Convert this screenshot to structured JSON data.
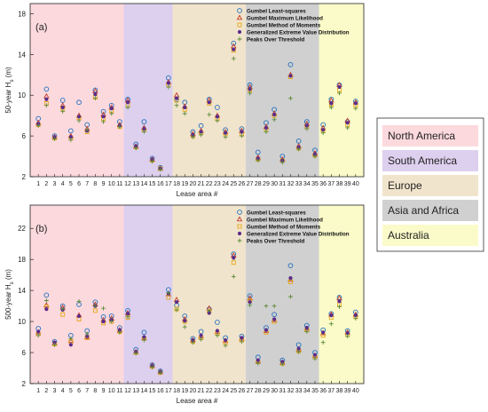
{
  "figure": {
    "region_legend": [
      {
        "name": "North America",
        "color": "#fcd9dd"
      },
      {
        "name": "South America",
        "color": "#ddd0ee"
      },
      {
        "name": "Europe",
        "color": "#f1e4cc"
      },
      {
        "name": "Asia and Africa",
        "color": "#d0d0d0"
      },
      {
        "name": "Australia",
        "color": "#fafbc9"
      }
    ]
  },
  "chart_data": [
    {
      "type": "scatter",
      "panel_label": "(a)",
      "xlabel": "Lease area #",
      "ylabel": "50-year H_s (m)",
      "ylabel_parts": {
        "main": "50-year H",
        "sub": "s",
        "unit": " (m)"
      },
      "ylim": [
        2,
        19
      ],
      "yticks": [
        2,
        6,
        10,
        14,
        18
      ],
      "xlim": [
        0,
        41
      ],
      "xticks": [
        1,
        2,
        3,
        4,
        5,
        6,
        7,
        8,
        9,
        10,
        11,
        12,
        13,
        14,
        15,
        16,
        17,
        18,
        19,
        20,
        21,
        22,
        23,
        24,
        25,
        26,
        27,
        28,
        29,
        30,
        31,
        32,
        33,
        34,
        35,
        36,
        37,
        38,
        39,
        40
      ],
      "region_spans": [
        {
          "region": "North America",
          "from": 0,
          "to": 11.5
        },
        {
          "region": "South America",
          "from": 11.5,
          "to": 17.5
        },
        {
          "region": "Europe",
          "from": 17.5,
          "to": 26.5
        },
        {
          "region": "Asia and Africa",
          "from": 26.5,
          "to": 35.5
        },
        {
          "region": "Australia",
          "from": 35.5,
          "to": 41
        }
      ],
      "legend_position": "top-right",
      "series": [
        {
          "name": "Gumbel Least-squares",
          "marker": "circle",
          "color": "#1f6fbf",
          "values": [
            7.7,
            10.6,
            6.0,
            9.5,
            6.5,
            9.3,
            7.1,
            10.5,
            8.4,
            9.0,
            7.4,
            9.6,
            5.2,
            7.4,
            3.8,
            2.9,
            11.7,
            9.6,
            9.3,
            6.4,
            7.0,
            9.6,
            8.8,
            6.6,
            15.1,
            6.7,
            11.0,
            4.4,
            7.3,
            8.6,
            4.0,
            13.0,
            5.5,
            7.4,
            4.6,
            7.1,
            9.6,
            11.0,
            7.4,
            9.4
          ]
        },
        {
          "name": "Gumbel Maximum Likelihood",
          "marker": "triangle",
          "color": "#c0392b",
          "values": [
            7.3,
            9.9,
            5.9,
            9.0,
            6.0,
            8.0,
            6.7,
            10.4,
            8.1,
            8.8,
            7.1,
            9.5,
            5.0,
            6.8,
            3.7,
            2.8,
            11.3,
            10.0,
            8.9,
            6.2,
            6.5,
            9.5,
            8.0,
            6.4,
            14.8,
            6.5,
            10.8,
            3.9,
            6.9,
            8.2,
            3.7,
            12.0,
            5.0,
            7.2,
            4.3,
            6.8,
            9.5,
            11.0,
            7.5,
            9.3
          ]
        },
        {
          "name": "Gumbel Method of Moments",
          "marker": "square",
          "color": "#e6a817",
          "values": [
            7.1,
            9.2,
            5.8,
            8.7,
            5.8,
            7.8,
            6.4,
            9.8,
            7.7,
            8.5,
            6.9,
            9.0,
            4.9,
            6.6,
            3.6,
            2.8,
            11.0,
            9.5,
            8.6,
            6.0,
            6.3,
            9.2,
            7.7,
            6.2,
            14.4,
            6.2,
            10.5,
            3.7,
            6.7,
            8.0,
            3.6,
            11.8,
            4.8,
            6.9,
            4.1,
            6.5,
            9.1,
            10.5,
            7.1,
            9.0
          ]
        },
        {
          "name": "Generalized Extreme Value Distribution",
          "marker": "dot",
          "color": "#5b2c8a",
          "values": [
            7.2,
            9.6,
            5.9,
            8.8,
            5.9,
            7.9,
            6.5,
            10.1,
            7.9,
            8.7,
            7.0,
            9.3,
            5.0,
            6.7,
            3.7,
            2.8,
            11.2,
            9.7,
            8.8,
            6.1,
            6.4,
            9.3,
            7.9,
            6.3,
            14.5,
            6.4,
            10.6,
            3.8,
            6.8,
            8.1,
            3.6,
            11.9,
            4.9,
            7.0,
            4.2,
            6.6,
            9.2,
            10.8,
            7.3,
            9.2
          ]
        },
        {
          "name": "Peaks Over Threshold",
          "marker": "plus",
          "color": "#5d8a3a",
          "values": [
            7.0,
            9.0,
            5.7,
            8.4,
            5.6,
            7.5,
            6.6,
            9.7,
            7.4,
            8.2,
            6.9,
            8.8,
            4.8,
            6.4,
            3.5,
            2.7,
            10.8,
            9.0,
            8.2,
            5.9,
            6.1,
            8.1,
            7.5,
            5.9,
            13.6,
            6.0,
            10.2,
            3.6,
            6.4,
            7.6,
            3.4,
            9.7,
            4.7,
            6.7,
            4.0,
            6.3,
            8.8,
            10.2,
            6.8,
            8.7
          ]
        }
      ]
    },
    {
      "type": "scatter",
      "panel_label": "(b)",
      "xlabel": "Lease area #",
      "ylabel": "500-year H_s (m)",
      "ylabel_parts": {
        "main": "500-year H",
        "sub": "s",
        "unit": " (m)"
      },
      "ylim": [
        2,
        25
      ],
      "yticks": [
        2,
        6,
        10,
        14,
        18,
        22
      ],
      "xlim": [
        0,
        41
      ],
      "xticks": [
        1,
        2,
        3,
        4,
        5,
        6,
        7,
        8,
        9,
        10,
        11,
        12,
        13,
        14,
        15,
        16,
        17,
        18,
        19,
        20,
        21,
        22,
        23,
        24,
        25,
        26,
        27,
        28,
        29,
        30,
        31,
        32,
        33,
        34,
        35,
        36,
        37,
        38,
        39,
        40
      ],
      "region_spans": [
        {
          "region": "North America",
          "from": 0,
          "to": 11.5
        },
        {
          "region": "South America",
          "from": 11.5,
          "to": 17.5
        },
        {
          "region": "Europe",
          "from": 17.5,
          "to": 26.5
        },
        {
          "region": "Asia and Africa",
          "from": 26.5,
          "to": 35.5
        },
        {
          "region": "Australia",
          "from": 35.5,
          "to": 41
        }
      ],
      "legend_position": "top-right",
      "series": [
        {
          "name": "Gumbel Least-squares",
          "marker": "circle",
          "color": "#1f6fbf",
          "values": [
            9.1,
            13.4,
            7.4,
            12.0,
            8.2,
            12.2,
            8.8,
            12.5,
            10.6,
            10.7,
            9.2,
            11.4,
            6.4,
            8.6,
            4.4,
            3.6,
            14.1,
            12.1,
            10.7,
            7.8,
            8.7,
            11.6,
            9.9,
            7.9,
            18.7,
            8.1,
            13.3,
            5.4,
            9.2,
            10.9,
            5.0,
            17.2,
            7.0,
            9.5,
            6.0,
            8.9,
            11.0,
            13.1,
            8.8,
            11.2
          ]
        },
        {
          "name": "Gumbel Maximum Likelihood",
          "marker": "triangle",
          "color": "#c0392b",
          "values": [
            8.6,
            12.1,
            7.2,
            11.8,
            7.5,
            10.8,
            8.0,
            12.2,
            10.2,
            10.4,
            8.9,
            11.1,
            6.1,
            7.9,
            4.3,
            3.5,
            13.5,
            12.8,
            10.3,
            7.6,
            8.1,
            11.7,
            8.7,
            7.5,
            18.5,
            7.8,
            13.0,
            4.9,
            8.8,
            10.2,
            4.7,
            15.4,
            6.4,
            9.1,
            5.6,
            8.5,
            10.9,
            13.0,
            8.6,
            10.9
          ]
        },
        {
          "name": "Gumbel Method of Moments",
          "marker": "square",
          "color": "#e6a817",
          "values": [
            8.4,
            11.9,
            7.1,
            10.9,
            7.4,
            10.3,
            7.9,
            11.4,
            9.8,
            10.0,
            8.7,
            10.5,
            6.0,
            7.8,
            4.2,
            3.4,
            13.1,
            11.6,
            10.0,
            7.4,
            7.9,
            11.3,
            8.5,
            7.3,
            17.6,
            7.6,
            12.7,
            4.8,
            8.6,
            10.0,
            4.6,
            15.1,
            6.2,
            8.9,
            5.4,
            8.2,
            10.5,
            12.2,
            8.3,
            10.6
          ]
        },
        {
          "name": "Generalized Extreme Value Distribution",
          "marker": "dot",
          "color": "#5b2c8a",
          "values": [
            8.7,
            11.6,
            7.3,
            11.5,
            7.0,
            10.7,
            8.1,
            12.0,
            10.0,
            10.2,
            8.9,
            11.0,
            6.1,
            8.0,
            4.3,
            3.5,
            13.6,
            12.5,
            10.1,
            7.6,
            8.2,
            11.1,
            8.8,
            7.6,
            18.2,
            7.9,
            12.5,
            5.0,
            8.9,
            10.3,
            4.8,
            15.6,
            6.5,
            9.2,
            5.7,
            8.6,
            10.8,
            12.6,
            8.5,
            10.8
          ]
        },
        {
          "name": "Peaks Over Threshold",
          "marker": "plus",
          "color": "#5d8a3a",
          "values": [
            8.2,
            12.7,
            7.0,
            11.6,
            7.8,
            12.6,
            8.4,
            12.0,
            11.7,
            10.0,
            8.6,
            10.6,
            5.9,
            7.6,
            4.1,
            3.4,
            13.7,
            11.5,
            9.3,
            7.3,
            7.7,
            11.4,
            8.2,
            6.9,
            15.8,
            7.4,
            12.1,
            4.6,
            12.0,
            12.0,
            4.5,
            13.2,
            6.1,
            8.7,
            5.2,
            7.3,
            9.7,
            11.9,
            8.1,
            10.4
          ]
        }
      ]
    }
  ]
}
